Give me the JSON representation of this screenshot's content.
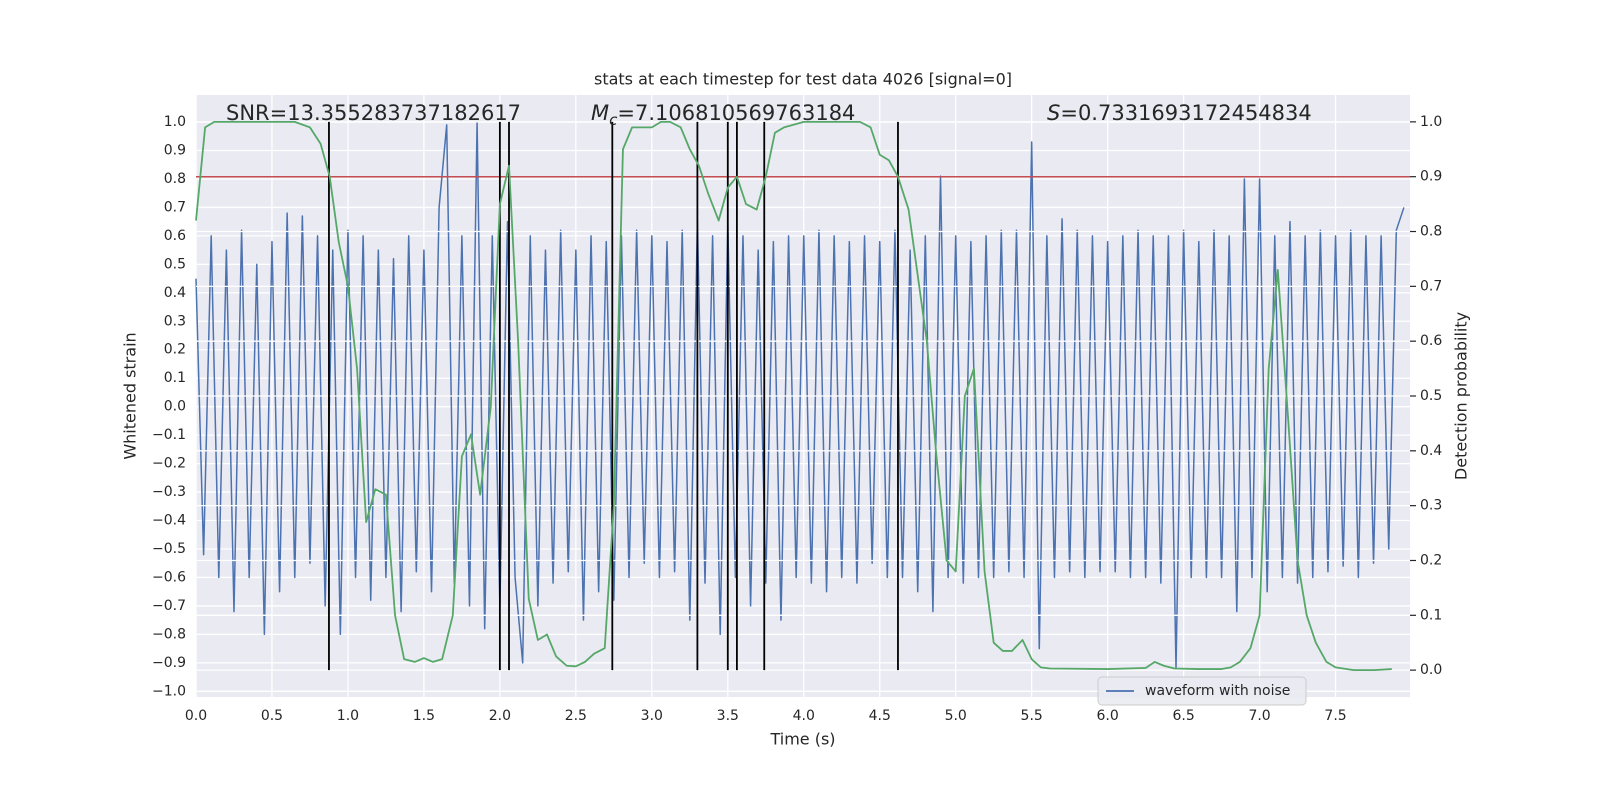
{
  "chart_data": {
    "type": "line",
    "title": "stats at each timestep for test data 4026 [signal=0]",
    "xlabel": "Time (s)",
    "ylabel": "Whitened strain",
    "y2label": "Detection probability",
    "annotations": [
      {
        "label": "SNR=13.355283737182617"
      },
      {
        "math": "M",
        "sub": "c",
        "label": "=7.106810569763184"
      },
      {
        "math": "S",
        "label": "=0.7331693172454834"
      }
    ],
    "x": [
      0.0,
      0.05,
      0.1,
      0.15,
      0.2,
      0.25,
      0.3,
      0.35,
      0.4,
      0.45,
      0.5,
      0.55,
      0.6,
      0.65,
      0.7,
      0.75,
      0.8,
      0.85,
      0.9,
      0.95,
      1.0,
      1.05,
      1.1,
      1.15,
      1.2,
      1.25,
      1.3,
      1.35,
      1.4,
      1.45,
      1.5,
      1.55,
      1.6,
      1.65,
      1.7,
      1.75,
      1.8,
      1.85,
      1.9,
      1.95,
      2.0,
      2.05,
      2.1,
      2.15,
      2.2,
      2.25,
      2.3,
      2.35,
      2.4,
      2.45,
      2.5,
      2.55,
      2.6,
      2.65,
      2.7,
      2.75,
      2.8,
      2.85,
      2.9,
      2.95,
      3.0,
      3.05,
      3.1,
      3.15,
      3.2,
      3.25,
      3.3,
      3.35,
      3.4,
      3.45,
      3.5,
      3.55,
      3.6,
      3.65,
      3.7,
      3.75,
      3.8,
      3.85,
      3.9,
      3.95,
      4.0,
      4.05,
      4.1,
      4.15,
      4.2,
      4.25,
      4.3,
      4.35,
      4.4,
      4.45,
      4.5,
      4.55,
      4.6,
      4.65,
      4.7,
      4.75,
      4.8,
      4.85,
      4.9,
      4.95,
      5.0,
      5.05,
      5.1,
      5.15,
      5.2,
      5.25,
      5.3,
      5.35,
      5.4,
      5.45,
      5.5,
      5.55,
      5.6,
      5.65,
      5.7,
      5.75,
      5.8,
      5.85,
      5.9,
      5.95,
      6.0,
      6.05,
      6.1,
      6.15,
      6.2,
      6.25,
      6.3,
      6.35,
      6.4,
      6.45,
      6.5,
      6.55,
      6.6,
      6.65,
      6.7,
      6.75,
      6.8,
      6.85,
      6.9,
      6.95,
      7.0,
      7.05,
      7.1,
      7.15,
      7.2,
      7.25,
      7.3,
      7.35,
      7.4,
      7.45,
      7.5,
      7.55,
      7.6,
      7.65,
      7.7,
      7.75,
      7.8,
      7.85,
      7.9,
      7.95
    ],
    "series": [
      {
        "name": "waveform with noise",
        "color": "#4c72b0",
        "values": [
          0.45,
          -0.52,
          0.6,
          -0.6,
          0.55,
          -0.72,
          0.62,
          -0.6,
          0.5,
          -0.8,
          0.58,
          -0.65,
          0.68,
          -0.6,
          0.67,
          -0.55,
          0.6,
          -0.7,
          0.55,
          -0.8,
          0.62,
          -0.6,
          0.6,
          -0.68,
          0.55,
          -0.6,
          0.52,
          -0.72,
          0.6,
          -0.58,
          0.55,
          -0.65,
          0.7,
          0.99,
          -0.62,
          0.6,
          -0.7,
          1.0,
          -0.78,
          0.6,
          -0.7,
          0.65,
          -0.6,
          -0.9,
          0.6,
          -0.7,
          0.55,
          -0.62,
          0.62,
          -0.58,
          0.55,
          -0.75,
          0.6,
          -0.65,
          0.58,
          -0.68,
          0.6,
          -0.6,
          0.62,
          -0.55,
          0.6,
          -0.6,
          0.58,
          -0.58,
          0.62,
          -0.75,
          0.65,
          -0.62,
          0.6,
          -0.8,
          0.64,
          -0.6,
          0.6,
          -0.7,
          0.55,
          -0.62,
          0.58,
          -0.75,
          0.6,
          -0.6,
          0.6,
          -0.62,
          0.62,
          -0.65,
          0.6,
          -0.6,
          0.58,
          -0.62,
          0.6,
          -0.55,
          0.58,
          -0.6,
          0.62,
          -0.6,
          0.55,
          -0.65,
          0.6,
          -0.72,
          0.81,
          -0.6,
          0.6,
          -0.62,
          0.58,
          -0.6,
          0.6,
          -0.6,
          0.62,
          -0.58,
          0.62,
          -0.6,
          0.93,
          -0.85,
          0.6,
          -0.6,
          0.66,
          -0.58,
          0.62,
          -0.6,
          0.6,
          -0.58,
          0.58,
          -0.58,
          0.6,
          -0.6,
          0.62,
          -0.6,
          0.6,
          -0.62,
          0.6,
          -0.92,
          0.62,
          -0.6,
          0.58,
          -0.6,
          0.62,
          -0.6,
          0.6,
          -0.72,
          0.8,
          -0.6,
          0.8,
          -0.65,
          0.6,
          -0.6,
          0.65,
          -0.62,
          0.6,
          -0.6,
          0.62,
          -0.58,
          0.6,
          -0.56,
          0.62,
          -0.6,
          0.6,
          -0.55,
          0.6,
          -0.5,
          0.62,
          0.7
        ]
      }
    ],
    "probability": {
      "color": "#55a868",
      "axis": "y2",
      "x": [
        0.0,
        0.06,
        0.12,
        0.5,
        0.65,
        0.75,
        0.82,
        0.88,
        0.94,
        1.0,
        1.06,
        1.12,
        1.18,
        1.25,
        1.31,
        1.37,
        1.44,
        1.5,
        1.56,
        1.62,
        1.69,
        1.75,
        1.81,
        1.87,
        1.94,
        2.0,
        2.06,
        2.12,
        2.19,
        2.25,
        2.31,
        2.37,
        2.44,
        2.5,
        2.56,
        2.62,
        2.69,
        2.75,
        2.81,
        2.87,
        2.94,
        3.0,
        3.06,
        3.12,
        3.19,
        3.25,
        3.31,
        3.37,
        3.44,
        3.5,
        3.56,
        3.62,
        3.69,
        3.75,
        3.81,
        3.87,
        4.0,
        4.12,
        4.25,
        4.37,
        4.44,
        4.5,
        4.56,
        4.62,
        4.69,
        4.75,
        4.81,
        4.87,
        4.94,
        5.0,
        5.06,
        5.12,
        5.19,
        5.25,
        5.31,
        5.37,
        5.44,
        5.5,
        5.56,
        5.62,
        6.0,
        6.25,
        6.31,
        6.37,
        6.44,
        6.6,
        6.75,
        6.81,
        6.87,
        6.94,
        7.0,
        7.06,
        7.12,
        7.19,
        7.25,
        7.31,
        7.37,
        7.44,
        7.5,
        7.62,
        7.75,
        7.87
      ],
      "values": [
        0.82,
        0.99,
        1.0,
        1.0,
        1.0,
        0.99,
        0.96,
        0.9,
        0.78,
        0.7,
        0.55,
        0.27,
        0.33,
        0.32,
        0.1,
        0.02,
        0.015,
        0.022,
        0.015,
        0.02,
        0.1,
        0.39,
        0.43,
        0.32,
        0.48,
        0.85,
        0.92,
        0.6,
        0.13,
        0.055,
        0.065,
        0.025,
        0.008,
        0.007,
        0.015,
        0.03,
        0.04,
        0.3,
        0.95,
        0.99,
        0.99,
        0.99,
        1.0,
        1.0,
        0.99,
        0.95,
        0.92,
        0.87,
        0.82,
        0.88,
        0.9,
        0.85,
        0.84,
        0.9,
        0.98,
        0.99,
        1.0,
        1.0,
        1.0,
        1.0,
        0.99,
        0.94,
        0.93,
        0.9,
        0.84,
        0.72,
        0.6,
        0.4,
        0.2,
        0.18,
        0.5,
        0.55,
        0.18,
        0.05,
        0.035,
        0.035,
        0.055,
        0.02,
        0.005,
        0.003,
        0.002,
        0.004,
        0.015,
        0.008,
        0.003,
        0.002,
        0.002,
        0.005,
        0.015,
        0.04,
        0.1,
        0.55,
        0.73,
        0.45,
        0.2,
        0.1,
        0.05,
        0.015,
        0.005,
        0.0,
        0.0,
        0.002
      ]
    },
    "threshold": {
      "value": 0.9,
      "axis": "y2",
      "color": "#c44e52"
    },
    "vlines": {
      "x": [
        0.875,
        2.0,
        2.06,
        2.74,
        3.3,
        3.5,
        3.56,
        3.74,
        4.62
      ],
      "y2range": [
        0,
        1
      ],
      "color": "#000000"
    },
    "xlim": [
      0,
      7.99
    ],
    "xticks": [
      {
        "value": 0,
        "label": "0.0"
      },
      {
        "value": 0.5,
        "label": "0.5"
      },
      {
        "value": 1,
        "label": "1.0"
      },
      {
        "value": 1.5,
        "label": "1.5"
      },
      {
        "value": 2,
        "label": "2.0"
      },
      {
        "value": 2.5,
        "label": "2.5"
      },
      {
        "value": 3,
        "label": "3.0"
      },
      {
        "value": 3.5,
        "label": "3.5"
      },
      {
        "value": 4,
        "label": "4.0"
      },
      {
        "value": 4.5,
        "label": "4.5"
      },
      {
        "value": 5,
        "label": "5.0"
      },
      {
        "value": 5.5,
        "label": "5.5"
      },
      {
        "value": 6,
        "label": "6.0"
      },
      {
        "value": 6.5,
        "label": "6.5"
      },
      {
        "value": 7,
        "label": "7.0"
      },
      {
        "value": 7.5,
        "label": "7.5"
      }
    ],
    "ylim": [
      -1.02,
      1.095
    ],
    "yticks": [
      {
        "value": -1,
        "label": "−1.0"
      },
      {
        "value": -0.9,
        "label": "−0.9"
      },
      {
        "value": -0.8,
        "label": "−0.8"
      },
      {
        "value": -0.7,
        "label": "−0.7"
      },
      {
        "value": -0.6,
        "label": "−0.6"
      },
      {
        "value": -0.5,
        "label": "−0.5"
      },
      {
        "value": -0.4,
        "label": "−0.4"
      },
      {
        "value": -0.3,
        "label": "−0.3"
      },
      {
        "value": -0.2,
        "label": "−0.2"
      },
      {
        "value": -0.1,
        "label": "−0.1"
      },
      {
        "value": 0,
        "label": "0.0"
      },
      {
        "value": 0.1,
        "label": "0.1"
      },
      {
        "value": 0.2,
        "label": "0.2"
      },
      {
        "value": 0.3,
        "label": "0.3"
      },
      {
        "value": 0.4,
        "label": "0.4"
      },
      {
        "value": 0.5,
        "label": "0.5"
      },
      {
        "value": 0.6,
        "label": "0.6"
      },
      {
        "value": 0.7,
        "label": "0.7"
      },
      {
        "value": 0.8,
        "label": "0.8"
      },
      {
        "value": 0.9,
        "label": "0.9"
      },
      {
        "value": 1,
        "label": "1.0"
      }
    ],
    "y2lim": [
      -0.049,
      1.049
    ],
    "y2ticks": [
      {
        "value": 0,
        "label": "0.0"
      },
      {
        "value": 0.1,
        "label": "0.1"
      },
      {
        "value": 0.2,
        "label": "0.2"
      },
      {
        "value": 0.3,
        "label": "0.3"
      },
      {
        "value": 0.4,
        "label": "0.4"
      },
      {
        "value": 0.5,
        "label": "0.5"
      },
      {
        "value": 0.6,
        "label": "0.6"
      },
      {
        "value": 0.7,
        "label": "0.7"
      },
      {
        "value": 0.8,
        "label": "0.8"
      },
      {
        "value": 0.9,
        "label": "0.9"
      },
      {
        "value": 1,
        "label": "1.0"
      }
    ],
    "grid": true,
    "legend": "lower right"
  }
}
